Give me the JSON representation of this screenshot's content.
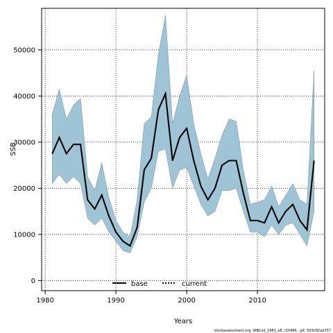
{
  "chart_data": {
    "type": "line",
    "xlabel": "Years",
    "ylabel": "SSB",
    "xlim": [
      1979.5,
      2019.5
    ],
    "ylim": [
      -2200,
      59000
    ],
    "xticks": [
      1980,
      1990,
      2000,
      2010
    ],
    "yticks": [
      0,
      10000,
      20000,
      30000,
      40000,
      50000
    ],
    "grid": true,
    "legend_position": "bottom-center",
    "colors": {
      "band": "#9fc4d6",
      "band_edge": "#6f8a99",
      "line": "#000000",
      "grid": "#000000"
    },
    "x": [
      1981,
      1982,
      1983,
      1984,
      1985,
      1986,
      1987,
      1988,
      1989,
      1990,
      1991,
      1992,
      1993,
      1994,
      1995,
      1996,
      1997,
      1998,
      1999,
      2000,
      2001,
      2002,
      2003,
      2004,
      2005,
      2006,
      2007,
      2008,
      2009,
      2010,
      2011,
      2012,
      2013,
      2014,
      2015,
      2016,
      2017,
      2018
    ],
    "series": [
      {
        "name": "base",
        "style": "solid",
        "values": [
          27500,
          31000,
          27500,
          29500,
          29500,
          17500,
          15500,
          18500,
          14000,
          10500,
          8500,
          7500,
          11500,
          24000,
          26500,
          37000,
          40500,
          26000,
          31000,
          33000,
          26000,
          20500,
          17500,
          20000,
          25000,
          26000,
          26000,
          19000,
          13000,
          13000,
          12500,
          16000,
          12500,
          15000,
          16500,
          13000,
          11000,
          26000
        ]
      },
      {
        "name": "current",
        "style": "dotted",
        "values": [
          27500,
          31000,
          27500,
          29500,
          29500,
          17500,
          15500,
          18500,
          14000,
          10500,
          8500,
          7500,
          11500,
          24000,
          26500,
          37000,
          40500,
          26000,
          31000,
          33000,
          26000,
          20500,
          17500,
          20000,
          25000,
          26000,
          26000,
          19000,
          13000,
          13000,
          12500,
          16000,
          12500,
          15000,
          16500,
          13000,
          11000,
          26000
        ]
      }
    ],
    "band": {
      "lower": [
        21000,
        23000,
        21000,
        22500,
        21000,
        13500,
        12000,
        13500,
        10500,
        8500,
        6500,
        6000,
        9500,
        17000,
        20000,
        28000,
        28500,
        20000,
        24000,
        24500,
        20500,
        16500,
        14000,
        15000,
        19500,
        19500,
        20000,
        15000,
        10500,
        10500,
        9500,
        12000,
        10000,
        12000,
        12500,
        10000,
        7500,
        15000
      ],
      "upper": [
        36000,
        41500,
        35000,
        38000,
        39500,
        22500,
        19500,
        25500,
        18000,
        13000,
        10500,
        9500,
        17500,
        34000,
        35500,
        49000,
        57500,
        34000,
        40000,
        44500,
        34000,
        27500,
        22000,
        26500,
        31500,
        35000,
        34500,
        24000,
        16500,
        17000,
        17500,
        20500,
        16000,
        18500,
        21000,
        17500,
        16500,
        45500
      ]
    },
    "footnote": "stockassessment.org, WBCod_1981_a8, r10486 , git: 503cf91af157"
  }
}
